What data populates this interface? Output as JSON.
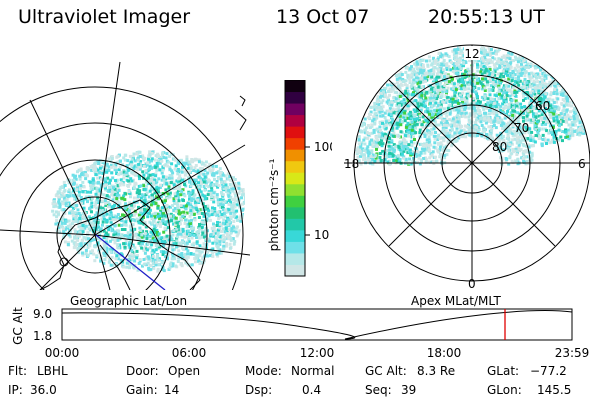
{
  "header": {
    "title": "Ultraviolet Imager",
    "date": "13 Oct 07",
    "time": "20:55:13 UT"
  },
  "left_panel": {
    "caption": "Geographic Lat/Lon"
  },
  "right_panel": {
    "caption": "Apex MLat/MLT",
    "mlt_labels": [
      "12",
      "18",
      "6",
      "0"
    ],
    "lat_labels": [
      "60",
      "70",
      "80"
    ]
  },
  "colorbar": {
    "unit_label": "photon cm⁻²s⁻¹",
    "ticks": [
      "100",
      "10"
    ],
    "scale": "log",
    "colors": [
      "#d0e6e6",
      "#b5e8e8",
      "#6fe0e8",
      "#38d8d8",
      "#22c8a8",
      "#22c070",
      "#40d040",
      "#90e030",
      "#d8e818",
      "#f0c810",
      "#f09000",
      "#f04000",
      "#e01010",
      "#b00040",
      "#700060",
      "#300040",
      "#100010"
    ]
  },
  "timeline": {
    "axis_label": "GC Alt",
    "y_ticks": [
      "9.0",
      "1.8"
    ],
    "x_ticks": [
      "00:00",
      "06:00",
      "12:00",
      "18:00",
      "23:59"
    ],
    "current_marker": "20:55"
  },
  "footer": {
    "flt_label": "Flt:",
    "flt_value": "LBHL",
    "ip_label": "IP:",
    "ip_value": "36.0",
    "door_label": "Door:",
    "door_value": "Open",
    "gain_label": "Gain:",
    "gain_value": "14",
    "mode_label": "Mode:",
    "mode_value": "Normal",
    "dsp_label": "Dsp:",
    "dsp_value": "0.4",
    "gcalt_label": "GC Alt:",
    "gcalt_value": "8.3 Re",
    "seq_label": "Seq:",
    "seq_value": "39",
    "glat_label": "GLat:",
    "glat_value": "−77.2",
    "glon_label": "GLon:",
    "glon_value": "145.5"
  }
}
